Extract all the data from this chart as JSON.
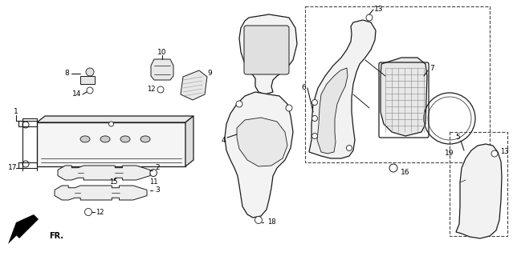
{
  "background_color": "#ffffff",
  "line_color": "#000000",
  "figsize": [
    6.39,
    3.2
  ],
  "dpi": 100
}
